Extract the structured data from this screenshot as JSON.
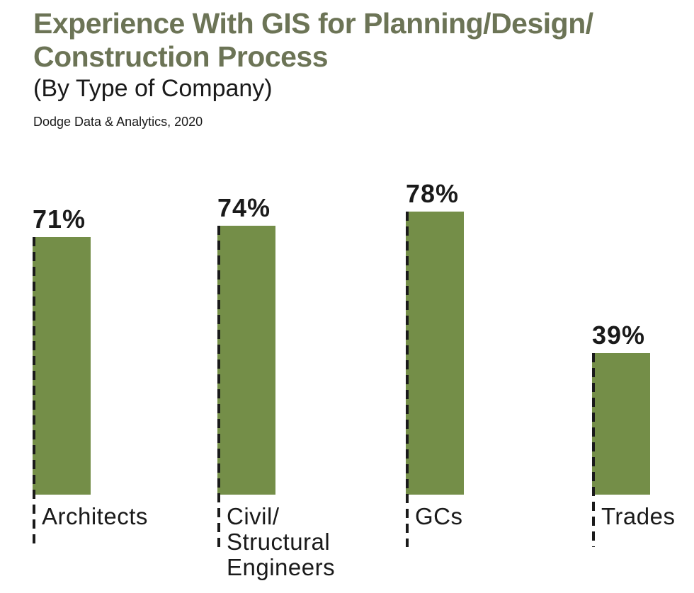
{
  "header": {
    "title_line1": "Experience With GIS for Planning/Design/",
    "title_line2": "Construction Process",
    "subtitle": "(By Type of Company)",
    "source": "Dodge Data & Analytics, 2020"
  },
  "colors": {
    "bar": "#748e48",
    "title_text": "#6c7456",
    "body_text": "#1a1a1a"
  },
  "chart_data": {
    "type": "bar",
    "title": "Experience With GIS for Planning/Design/Construction Process",
    "subtitle": "(By Type of Company)",
    "source": "Dodge Data & Analytics, 2020",
    "categories": [
      "Architects",
      "Civil/Structural Engineers",
      "GCs",
      "Trades"
    ],
    "category_lines": [
      [
        "Architects"
      ],
      [
        "Civil/",
        "Structural",
        "Engineers"
      ],
      [
        "GCs"
      ],
      [
        "Trades"
      ]
    ],
    "values": [
      71,
      74,
      78,
      39
    ],
    "value_labels": [
      "71%",
      "74%",
      "78%",
      "39%"
    ],
    "unit": "%",
    "ylim": [
      0,
      100
    ],
    "grid": false,
    "legend": false,
    "bar_style": "solid fill with black dashed drop-line on left edge extending below baseline"
  }
}
